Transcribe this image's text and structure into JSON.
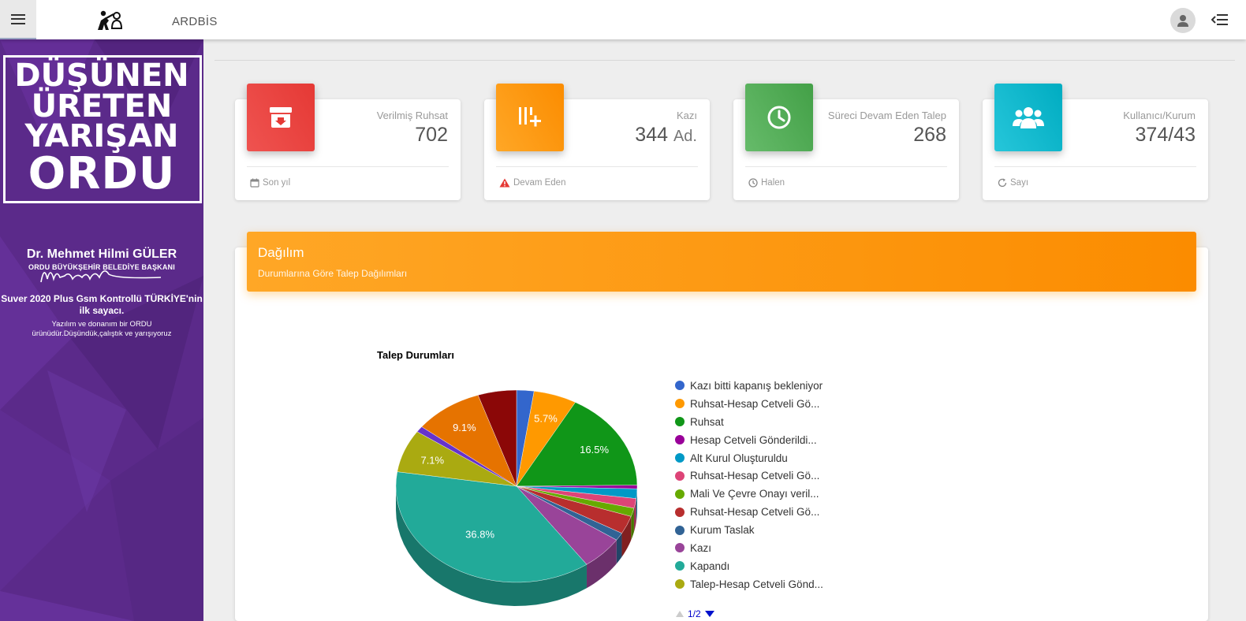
{
  "header": {
    "app_title": "ARDBİS",
    "icons": {
      "menu": "hamburger-menu-icon",
      "logo": "worker-logo-icon",
      "user": "user-avatar-icon",
      "toggle": "sidebar-collapse-icon"
    }
  },
  "sidebar": {
    "slogan": [
      "DÜŞÜNEN",
      "ÜRETEN",
      "YARIŞAN",
      "ORDU"
    ],
    "mayor_name": "Dr. Mehmet Hilmi GÜLER",
    "mayor_title": "ORDU BÜYÜKŞEHİR BELEDİYE BAŞKANI",
    "promo": "Suver 2020 Plus Gsm Kontrollü TÜRKİYE'nin ilk sayacı.",
    "promo_sub": "Yazılım ve donanım bir ORDU ürünüdür.Düşündük,çalıştık ve yarışıyoruz",
    "background_color": "#5b2a8a"
  },
  "cards": [
    {
      "label": "Verilmiş Ruhsat",
      "value": "702",
      "unit": "",
      "footer": "Son yıl",
      "footer_icon": "calendar-icon",
      "icon": "archive-download-icon",
      "color": "#e53935"
    },
    {
      "label": "Kazı",
      "value": "344",
      "unit": "Ad.",
      "footer": "Devam Eden",
      "footer_icon": "warning-icon",
      "icon": "add-list-icon",
      "color": "#fb8c00"
    },
    {
      "label": "Süreci Devam Eden Talep",
      "value": "268",
      "unit": "",
      "footer": "Halen",
      "footer_icon": "clock-icon",
      "icon": "clock-icon",
      "color": "#43a047"
    },
    {
      "label": "Kullanıcı/Kurum",
      "value": "374/43",
      "unit": "",
      "footer": "Sayı",
      "footer_icon": "refresh-icon",
      "icon": "users-icon",
      "color": "#00acc1"
    }
  ],
  "panel": {
    "title": "Dağılım",
    "subtitle": "Durumlarına Göre Talep Dağılımları",
    "header_color": "#fb8c00"
  },
  "chart_data": {
    "type": "pie",
    "title": "Talep Durumları",
    "categories": [
      "Kazı bitti kapanış bekleniyor",
      "Ruhsat-Hesap Cetveli Gö...",
      "Ruhsat",
      "Hesap Cetveli Gönderildi...",
      "Alt Kurul Oluşturuldu",
      "Ruhsat-Hesap Cetveli Gö...",
      "Mali Ve Çevre Onayı veril...",
      "Ruhsat-Hesap Cetveli Gö...",
      "Kurum Taslak",
      "Kazı",
      "Kapandı",
      "Talep-Hesap Cetveli Gönd...",
      "",
      "",
      ""
    ],
    "values": [
      2.3,
      5.7,
      16.5,
      0.6,
      1.6,
      1.6,
      1.4,
      3.0,
      1.3,
      5.6,
      36.8,
      7.1,
      1.0,
      9.1,
      5.1
    ],
    "labels_shown": {
      "1": "5.7%",
      "2": "16.5%",
      "10": "36.8%",
      "11": "7.1%",
      "13": "9.1%"
    },
    "colors": [
      "#3366cc",
      "#ff9900",
      "#109618",
      "#990099",
      "#0099c6",
      "#dd4477",
      "#66aa00",
      "#b82e2e",
      "#316395",
      "#994499",
      "#22aa99",
      "#aaaa11",
      "#6633cc",
      "#e67300",
      "#8b0707"
    ],
    "legend_visible_count": 12,
    "legend_page": "1/2"
  }
}
